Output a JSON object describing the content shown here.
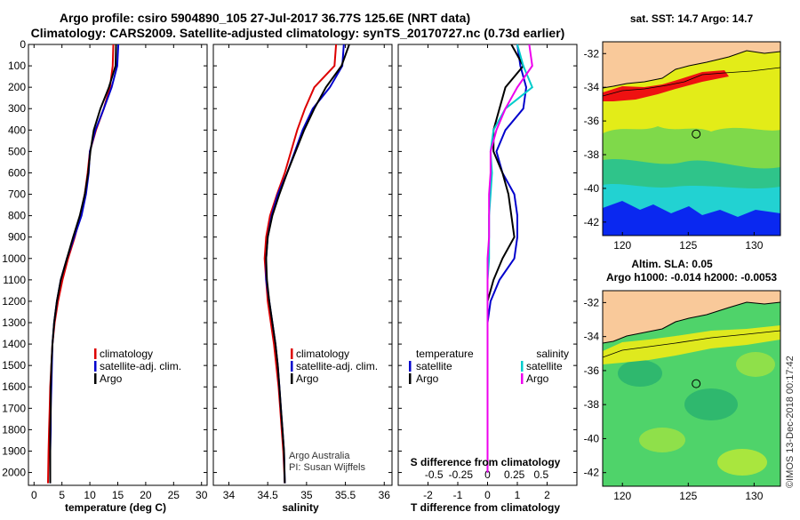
{
  "header": {
    "title_line1": "Argo profile: csiro 5904890_105 27-Jul-2017 36.77S 125.6E (NRT data)",
    "title_line2": "Climatology: CARS2009. Satellite-adjusted climatology: synTS_20170727.nc (0.73d earlier)"
  },
  "colors": {
    "climatology": "#dd0000",
    "satellite": "#0000cc",
    "argo": "#000000",
    "salinity_satellite": "#00cccc",
    "salinity_argo": "#ee00ee",
    "land": "#f9c99a"
  },
  "credits": {
    "line1": "Argo Australia",
    "line2": "PI: Susan Wijffels",
    "imos": "©IMOS 13-Dec-2018 00:17:42"
  },
  "chart_data": [
    {
      "type": "line",
      "id": "temperature",
      "xlabel": "temperature (deg C)",
      "ylabel": "",
      "xlim": [
        -1,
        31
      ],
      "ylim": [
        2060,
        0
      ],
      "xticks": [
        0,
        5,
        10,
        15,
        20,
        25,
        30
      ],
      "yticks": [
        0,
        100,
        200,
        300,
        400,
        500,
        600,
        700,
        800,
        900,
        1000,
        1100,
        1200,
        1300,
        1400,
        1500,
        1600,
        1700,
        1800,
        1900,
        2000
      ],
      "legend": [
        "climatology",
        "satellite-adj. clim.",
        "Argo"
      ],
      "legend_position": "lower-right",
      "series": [
        {
          "name": "climatology",
          "color_key": "climatology",
          "x": [
            14.2,
            14.1,
            13.6,
            12.5,
            11.1,
            10.0,
            9.6,
            9.1,
            8.3,
            7.3,
            6.1,
            5.1,
            4.3,
            3.7,
            3.3,
            3.1,
            2.9,
            2.8,
            2.7,
            2.6,
            2.5
          ],
          "y": [
            0,
            100,
            200,
            300,
            400,
            500,
            600,
            700,
            800,
            900,
            1000,
            1100,
            1200,
            1300,
            1400,
            1500,
            1600,
            1700,
            1800,
            1900,
            2050
          ]
        },
        {
          "name": "satellite-adj. clim.",
          "color_key": "satellite",
          "x": [
            15.1,
            14.9,
            13.9,
            12.5,
            11.0,
            10.0,
            9.8,
            9.3,
            8.5,
            7.2,
            5.9,
            4.8,
            4.1,
            3.6,
            3.3,
            3.2,
            3.1,
            3.0,
            3.0,
            2.9,
            2.9
          ],
          "y": [
            0,
            100,
            200,
            300,
            400,
            500,
            600,
            700,
            800,
            900,
            1000,
            1100,
            1200,
            1300,
            1400,
            1500,
            1600,
            1700,
            1800,
            1900,
            2050
          ]
        },
        {
          "name": "Argo",
          "color_key": "argo",
          "x": [
            14.7,
            14.6,
            13.4,
            11.9,
            10.7,
            10.1,
            9.7,
            9.1,
            8.2,
            7.0,
            5.9,
            4.8,
            4.1,
            3.6,
            3.3,
            3.1,
            3.0,
            3.0,
            2.9,
            2.9,
            2.9
          ],
          "y": [
            0,
            100,
            200,
            300,
            400,
            500,
            600,
            700,
            800,
            900,
            1000,
            1100,
            1200,
            1300,
            1400,
            1500,
            1600,
            1700,
            1800,
            1900,
            2050
          ]
        }
      ]
    },
    {
      "type": "line",
      "id": "salinity",
      "xlabel": "salinity",
      "ylabel": "",
      "xlim": [
        33.8,
        36.1
      ],
      "ylim": [
        2060,
        0
      ],
      "xticks": [
        34,
        34.5,
        35,
        35.5,
        36
      ],
      "legend": [
        "climatology",
        "satellite-adj. clim.",
        "Argo"
      ],
      "legend_position": "lower-right",
      "series": [
        {
          "name": "climatology",
          "color_key": "climatology",
          "x": [
            35.38,
            35.36,
            35.1,
            34.98,
            34.88,
            34.8,
            34.72,
            34.62,
            34.53,
            34.48,
            34.46,
            34.48,
            34.5,
            34.54,
            34.58,
            34.61,
            34.64,
            34.66,
            34.68,
            34.7,
            34.72
          ],
          "y": [
            0,
            100,
            200,
            300,
            400,
            500,
            600,
            700,
            800,
            900,
            1000,
            1100,
            1200,
            1300,
            1400,
            1500,
            1600,
            1700,
            1800,
            1900,
            2050
          ]
        },
        {
          "name": "satellite-adj. clim.",
          "color_key": "satellite",
          "x": [
            35.48,
            35.46,
            35.3,
            35.08,
            34.95,
            34.85,
            34.75,
            34.63,
            34.55,
            34.5,
            34.48,
            34.48,
            34.52,
            34.56,
            34.6,
            34.63,
            34.65,
            34.67,
            34.69,
            34.71,
            34.72
          ],
          "y": [
            0,
            100,
            200,
            300,
            400,
            500,
            600,
            700,
            800,
            900,
            1000,
            1100,
            1200,
            1300,
            1400,
            1500,
            1600,
            1700,
            1800,
            1900,
            2050
          ]
        },
        {
          "name": "Argo",
          "color_key": "argo",
          "x": [
            35.55,
            35.45,
            35.25,
            35.1,
            34.97,
            34.86,
            34.75,
            34.65,
            34.56,
            34.5,
            34.48,
            34.49,
            34.52,
            34.56,
            34.6,
            34.63,
            34.65,
            34.67,
            34.69,
            34.71,
            34.72
          ],
          "y": [
            0,
            100,
            200,
            300,
            400,
            500,
            600,
            700,
            800,
            900,
            1000,
            1100,
            1200,
            1300,
            1400,
            1500,
            1600,
            1700,
            1800,
            1900,
            2050
          ]
        }
      ]
    },
    {
      "type": "line",
      "id": "difference",
      "xlabel": "T difference from climatology",
      "x2label": "S difference from climatology",
      "ylabel": "",
      "xlim": [
        -3,
        3
      ],
      "ylim": [
        2060,
        0
      ],
      "xticks": [
        -2,
        -1,
        0,
        1,
        2
      ],
      "x2ticks": [
        "-0.5",
        "-0.25",
        "0",
        "0.25",
        "0.5"
      ],
      "legend_temperature_header": "temperature",
      "legend_salinity_header": "salinity",
      "legend_temperature": [
        "satellite",
        "Argo"
      ],
      "legend_salinity": [
        "satellite",
        "Argo"
      ],
      "series": [
        {
          "name": "temperature satellite",
          "color_key": "satellite",
          "x": [
            1.0,
            1.1,
            1.3,
            1.2,
            0.6,
            0.3,
            0.5,
            0.9,
            1.0,
            1.0,
            0.9,
            0.4,
            0.1,
            0.0,
            0.0,
            0.0,
            0.0,
            0.0,
            0.0,
            0.0,
            0.0
          ],
          "y": [
            0,
            100,
            200,
            300,
            400,
            500,
            600,
            700,
            800,
            900,
            1000,
            1100,
            1200,
            1300,
            1400,
            1500,
            1600,
            1700,
            1800,
            1900,
            2000
          ]
        },
        {
          "name": "temperature Argo",
          "color_key": "argo",
          "x": [
            0.8,
            1.2,
            0.6,
            0.4,
            0.2,
            0.2,
            0.5,
            0.7,
            0.8,
            0.9,
            0.5,
            0.2,
            0.0,
            0.0,
            0.0,
            0.0,
            0.0,
            0.0,
            0.0,
            0.0,
            0.0
          ],
          "y": [
            0,
            100,
            200,
            300,
            400,
            500,
            600,
            700,
            800,
            900,
            1000,
            1100,
            1200,
            1300,
            1400,
            1500,
            1600,
            1700,
            1800,
            1900,
            2000
          ]
        },
        {
          "name": "salinity satellite",
          "color_key": "salinity_satellite",
          "x": [
            1.0,
            1.2,
            1.5,
            0.6,
            0.2,
            0.1,
            0.15,
            0.1,
            0.05,
            0.05,
            0.05,
            0.0,
            0.0,
            0.0,
            0.0,
            0.0,
            0.0,
            0.0,
            0.0,
            0.0,
            0.0
          ],
          "y": [
            0,
            100,
            200,
            300,
            400,
            500,
            600,
            700,
            800,
            900,
            1000,
            1100,
            1200,
            1300,
            1400,
            1500,
            1600,
            1700,
            1800,
            1900,
            2000
          ]
        },
        {
          "name": "salinity Argo",
          "color_key": "salinity_argo",
          "x": [
            1.4,
            1.5,
            1.0,
            0.6,
            0.3,
            0.1,
            0.1,
            0.05,
            0.05,
            0.05,
            0.0,
            0.0,
            0.0,
            0.0,
            0.0,
            0.0,
            0.0,
            0.0,
            0.0,
            0.0,
            0.0
          ],
          "y": [
            0,
            100,
            200,
            300,
            400,
            500,
            600,
            700,
            800,
            900,
            1000,
            1100,
            1200,
            1300,
            1400,
            1500,
            1600,
            1700,
            1800,
            1900,
            2000
          ]
        }
      ]
    },
    {
      "type": "heatmap",
      "id": "sst_map",
      "title": "sat. SST: 14.7 Argo: 14.7",
      "xlim": [
        118.5,
        132
      ],
      "ylim": [
        -42.8,
        -31.3
      ],
      "xticks": [
        120,
        125,
        130
      ],
      "yticks": [
        -32,
        -34,
        -36,
        -38,
        -40,
        -42
      ],
      "profile_lon": 125.6,
      "profile_lat": -36.77
    },
    {
      "type": "heatmap",
      "id": "sla_map",
      "title": "Altim. SLA: 0.05",
      "subtitle": "Argo h1000: -0.014 h2000: -0.0053",
      "xlim": [
        118.5,
        132
      ],
      "ylim": [
        -42.8,
        -31.3
      ],
      "xticks": [
        120,
        125,
        130
      ],
      "yticks": [
        -32,
        -34,
        -36,
        -38,
        -40,
        -42
      ],
      "profile_lon": 125.6,
      "profile_lat": -36.77
    }
  ]
}
